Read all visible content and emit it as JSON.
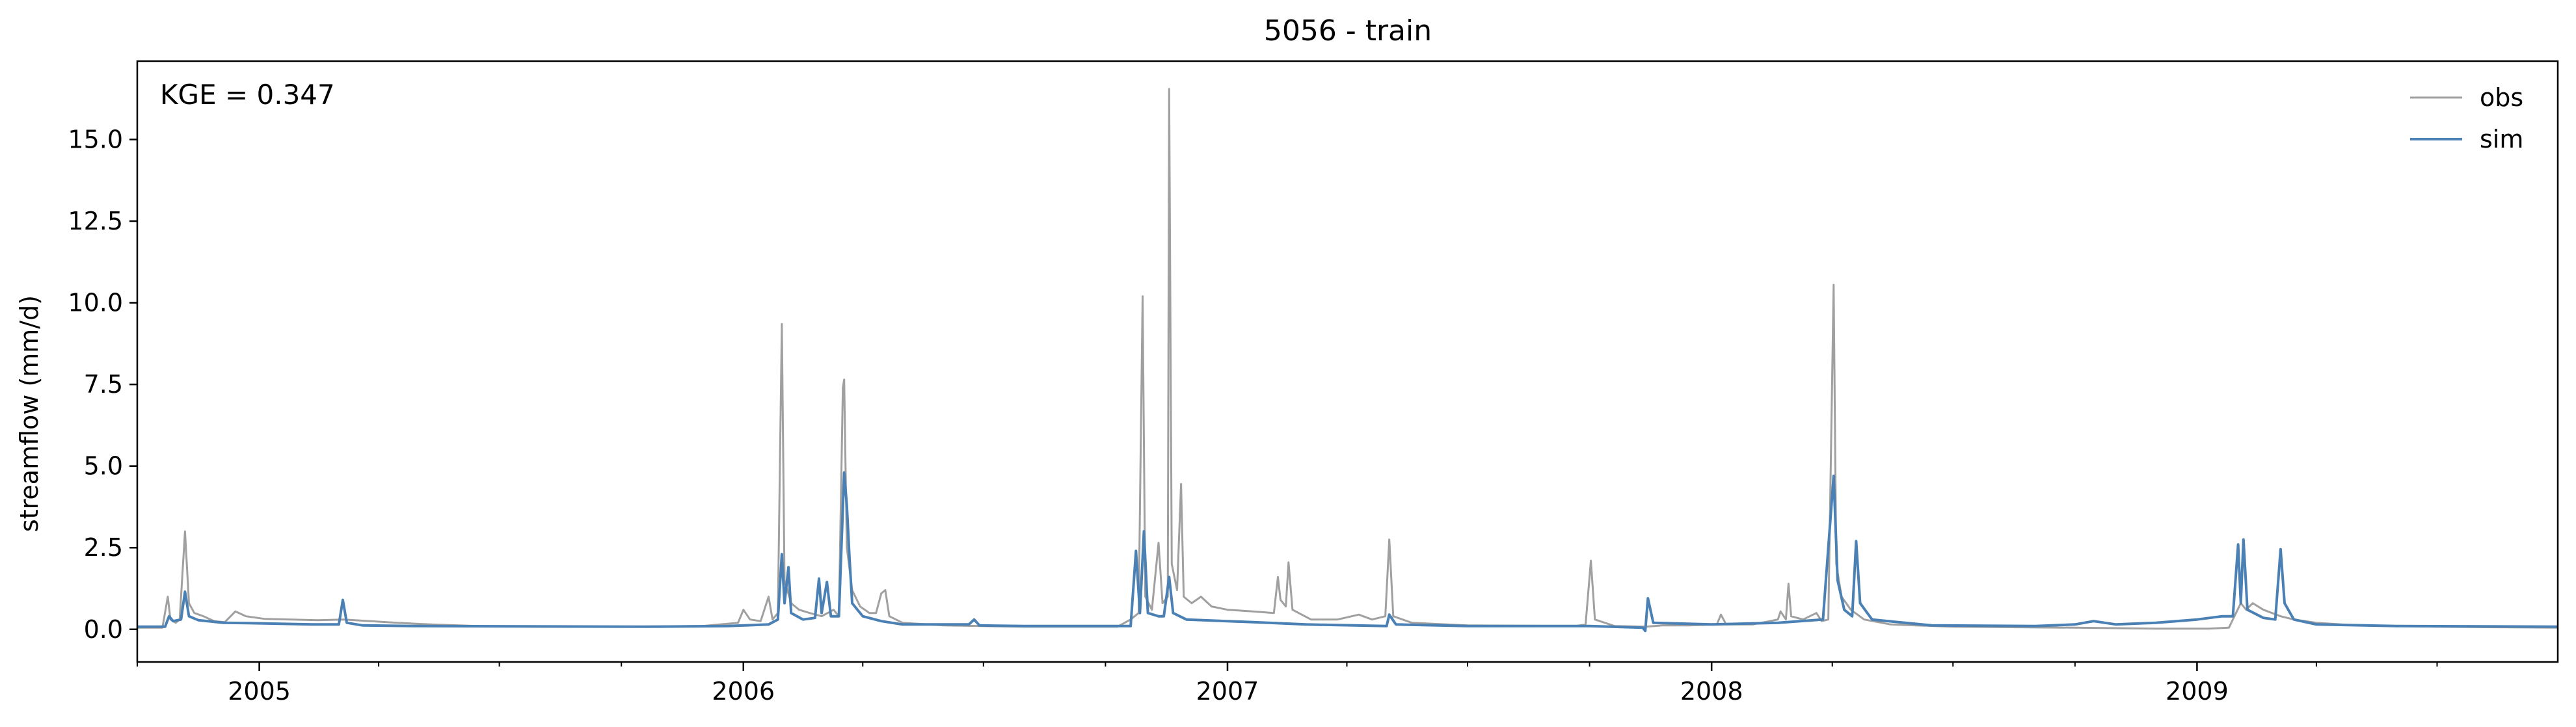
{
  "chart_data": {
    "type": "line",
    "title": "5056 - train",
    "xlabel": "",
    "ylabel": "streamflow (mm/d)",
    "annotation": "KGE = 0.347",
    "x_range": [
      "2004-10-01",
      "2009-09-30"
    ],
    "ylim": [
      -1.0,
      17.4
    ],
    "yticks": [
      0.0,
      2.5,
      5.0,
      7.5,
      10.0,
      12.5,
      15.0
    ],
    "ytick_labels": [
      "0.0",
      "2.5",
      "5.0",
      "7.5",
      "10.0",
      "12.5",
      "15.0"
    ],
    "xticks": [
      "2005-01-01",
      "2006-01-01",
      "2007-01-01",
      "2008-01-01",
      "2009-01-01"
    ],
    "xtick_labels": [
      "2005",
      "2006",
      "2007",
      "2008",
      "2009"
    ],
    "grid": false,
    "legend": "top-right",
    "series": [
      {
        "name": "obs",
        "color": "#a0a0a0",
        "points": [
          [
            "2004-10-01",
            0.05
          ],
          [
            "2004-10-20",
            0.05
          ],
          [
            "2004-10-24",
            1.0
          ],
          [
            "2004-10-26",
            0.3
          ],
          [
            "2004-10-30",
            0.2
          ],
          [
            "2004-11-02",
            0.3
          ],
          [
            "2004-11-06",
            3.0
          ],
          [
            "2004-11-09",
            0.8
          ],
          [
            "2004-11-13",
            0.5
          ],
          [
            "2004-11-20",
            0.4
          ],
          [
            "2004-11-28",
            0.25
          ],
          [
            "2004-12-06",
            0.22
          ],
          [
            "2004-12-14",
            0.55
          ],
          [
            "2004-12-22",
            0.4
          ],
          [
            "2005-01-05",
            0.32
          ],
          [
            "2005-01-25",
            0.3
          ],
          [
            "2005-02-14",
            0.28
          ],
          [
            "2005-03-06",
            0.3
          ],
          [
            "2005-03-26",
            0.25
          ],
          [
            "2005-04-15",
            0.2
          ],
          [
            "2005-05-10",
            0.15
          ],
          [
            "2005-06-15",
            0.1
          ],
          [
            "2005-08-01",
            0.08
          ],
          [
            "2005-10-01",
            0.08
          ],
          [
            "2005-12-01",
            0.1
          ],
          [
            "2005-12-28",
            0.2
          ],
          [
            "2006-01-01",
            0.6
          ],
          [
            "2006-01-06",
            0.3
          ],
          [
            "2006-01-14",
            0.25
          ],
          [
            "2006-01-20",
            1.0
          ],
          [
            "2006-01-23",
            0.3
          ],
          [
            "2006-01-27",
            0.5
          ],
          [
            "2006-01-30",
            9.35
          ],
          [
            "2006-02-01",
            1.5
          ],
          [
            "2006-02-06",
            0.8
          ],
          [
            "2006-02-12",
            0.6
          ],
          [
            "2006-02-20",
            0.5
          ],
          [
            "2006-03-01",
            0.4
          ],
          [
            "2006-03-10",
            0.6
          ],
          [
            "2006-03-14",
            0.4
          ],
          [
            "2006-03-17",
            7.4
          ],
          [
            "2006-03-18",
            7.65
          ],
          [
            "2006-03-20",
            2.5
          ],
          [
            "2006-03-24",
            1.2
          ],
          [
            "2006-03-30",
            0.7
          ],
          [
            "2006-04-06",
            0.5
          ],
          [
            "2006-04-11",
            0.5
          ],
          [
            "2006-04-15",
            1.1
          ],
          [
            "2006-04-18",
            1.2
          ],
          [
            "2006-04-21",
            0.4
          ],
          [
            "2006-05-01",
            0.2
          ],
          [
            "2006-06-01",
            0.12
          ],
          [
            "2006-08-01",
            0.08
          ],
          [
            "2006-10-10",
            0.08
          ],
          [
            "2006-10-20",
            0.3
          ],
          [
            "2006-10-26",
            0.5
          ],
          [
            "2006-10-29",
            10.2
          ],
          [
            "2006-10-31",
            1.0
          ],
          [
            "2006-11-05",
            0.6
          ],
          [
            "2006-11-10",
            2.65
          ],
          [
            "2006-11-13",
            0.8
          ],
          [
            "2006-11-17",
            1.0
          ],
          [
            "2006-11-18",
            16.55
          ],
          [
            "2006-11-20",
            2.0
          ],
          [
            "2006-11-24",
            1.2
          ],
          [
            "2006-11-27",
            4.45
          ],
          [
            "2006-11-29",
            1.0
          ],
          [
            "2006-12-05",
            0.8
          ],
          [
            "2006-12-12",
            1.0
          ],
          [
            "2006-12-20",
            0.7
          ],
          [
            "2007-01-01",
            0.6
          ],
          [
            "2007-01-20",
            0.55
          ],
          [
            "2007-02-05",
            0.5
          ],
          [
            "2007-02-08",
            1.6
          ],
          [
            "2007-02-10",
            0.9
          ],
          [
            "2007-02-14",
            0.7
          ],
          [
            "2007-02-16",
            2.05
          ],
          [
            "2007-02-19",
            0.6
          ],
          [
            "2007-03-05",
            0.3
          ],
          [
            "2007-03-25",
            0.3
          ],
          [
            "2007-04-10",
            0.45
          ],
          [
            "2007-04-20",
            0.3
          ],
          [
            "2007-04-30",
            0.4
          ],
          [
            "2007-05-03",
            2.75
          ],
          [
            "2007-05-06",
            0.4
          ],
          [
            "2007-05-20",
            0.2
          ],
          [
            "2007-07-01",
            0.12
          ],
          [
            "2007-09-20",
            0.1
          ],
          [
            "2007-09-28",
            0.15
          ],
          [
            "2007-10-02",
            2.1
          ],
          [
            "2007-10-05",
            0.3
          ],
          [
            "2007-10-20",
            0.1
          ],
          [
            "2007-11-12",
            0.08
          ],
          [
            "2007-11-25",
            0.12
          ],
          [
            "2007-12-15",
            0.12
          ],
          [
            "2008-01-05",
            0.15
          ],
          [
            "2008-01-08",
            0.45
          ],
          [
            "2008-01-12",
            0.15
          ],
          [
            "2008-02-01",
            0.15
          ],
          [
            "2008-02-20",
            0.3
          ],
          [
            "2008-02-22",
            0.55
          ],
          [
            "2008-02-26",
            0.3
          ],
          [
            "2008-02-28",
            1.4
          ],
          [
            "2008-03-01",
            0.4
          ],
          [
            "2008-03-10",
            0.3
          ],
          [
            "2008-03-20",
            0.5
          ],
          [
            "2008-03-24",
            0.25
          ],
          [
            "2008-03-29",
            0.3
          ],
          [
            "2008-04-02",
            10.55
          ],
          [
            "2008-04-04",
            2.0
          ],
          [
            "2008-04-08",
            1.0
          ],
          [
            "2008-04-15",
            0.6
          ],
          [
            "2008-04-25",
            0.3
          ],
          [
            "2008-05-15",
            0.15
          ],
          [
            "2008-07-01",
            0.08
          ],
          [
            "2008-10-01",
            0.05
          ],
          [
            "2008-12-01",
            0.02
          ],
          [
            "2009-01-10",
            0.02
          ],
          [
            "2009-01-25",
            0.05
          ],
          [
            "2009-02-03",
            0.8
          ],
          [
            "2009-02-07",
            0.6
          ],
          [
            "2009-02-12",
            0.8
          ],
          [
            "2009-02-20",
            0.6
          ],
          [
            "2009-03-05",
            0.4
          ],
          [
            "2009-03-15",
            0.3
          ],
          [
            "2009-04-01",
            0.2
          ],
          [
            "2009-05-01",
            0.12
          ],
          [
            "2009-07-01",
            0.08
          ],
          [
            "2009-09-30",
            0.05
          ]
        ]
      },
      {
        "name": "sim",
        "color": "#4a80b4",
        "points": [
          [
            "2004-10-01",
            0.08
          ],
          [
            "2004-10-22",
            0.08
          ],
          [
            "2004-10-25",
            0.4
          ],
          [
            "2004-10-28",
            0.25
          ],
          [
            "2004-11-03",
            0.3
          ],
          [
            "2004-11-06",
            1.15
          ],
          [
            "2004-11-09",
            0.4
          ],
          [
            "2004-11-16",
            0.28
          ],
          [
            "2004-12-05",
            0.2
          ],
          [
            "2005-01-05",
            0.18
          ],
          [
            "2005-02-10",
            0.15
          ],
          [
            "2005-03-02",
            0.15
          ],
          [
            "2005-03-05",
            0.9
          ],
          [
            "2005-03-08",
            0.2
          ],
          [
            "2005-03-20",
            0.12
          ],
          [
            "2005-05-01",
            0.1
          ],
          [
            "2005-10-20",
            0.08
          ],
          [
            "2005-12-20",
            0.1
          ],
          [
            "2006-01-20",
            0.15
          ],
          [
            "2006-01-27",
            0.3
          ],
          [
            "2006-01-30",
            2.3
          ],
          [
            "2006-02-01",
            0.8
          ],
          [
            "2006-02-04",
            1.9
          ],
          [
            "2006-02-06",
            0.5
          ],
          [
            "2006-02-15",
            0.3
          ],
          [
            "2006-02-24",
            0.35
          ],
          [
            "2006-02-27",
            1.55
          ],
          [
            "2006-03-01",
            0.5
          ],
          [
            "2006-03-05",
            1.45
          ],
          [
            "2006-03-08",
            0.4
          ],
          [
            "2006-03-14",
            0.4
          ],
          [
            "2006-03-18",
            4.8
          ],
          [
            "2006-03-20",
            3.8
          ],
          [
            "2006-03-22",
            2.2
          ],
          [
            "2006-03-24",
            0.8
          ],
          [
            "2006-04-01",
            0.4
          ],
          [
            "2006-04-15",
            0.25
          ],
          [
            "2006-05-01",
            0.15
          ],
          [
            "2006-06-20",
            0.15
          ],
          [
            "2006-06-24",
            0.3
          ],
          [
            "2006-06-28",
            0.12
          ],
          [
            "2006-08-01",
            0.1
          ],
          [
            "2006-10-20",
            0.1
          ],
          [
            "2006-10-24",
            2.4
          ],
          [
            "2006-10-27",
            0.5
          ],
          [
            "2006-10-30",
            3.0
          ],
          [
            "2006-11-02",
            0.5
          ],
          [
            "2006-11-10",
            0.4
          ],
          [
            "2006-11-14",
            0.4
          ],
          [
            "2006-11-18",
            1.6
          ],
          [
            "2006-11-21",
            0.5
          ],
          [
            "2006-12-01",
            0.3
          ],
          [
            "2007-01-01",
            0.25
          ],
          [
            "2007-02-01",
            0.2
          ],
          [
            "2007-03-01",
            0.15
          ],
          [
            "2007-05-01",
            0.1
          ],
          [
            "2007-05-03",
            0.45
          ],
          [
            "2007-05-08",
            0.15
          ],
          [
            "2007-07-01",
            0.1
          ],
          [
            "2007-10-01",
            0.1
          ],
          [
            "2007-11-10",
            0.05
          ],
          [
            "2007-11-12",
            -0.05
          ],
          [
            "2007-11-14",
            0.95
          ],
          [
            "2007-11-18",
            0.2
          ],
          [
            "2008-01-01",
            0.15
          ],
          [
            "2008-02-20",
            0.2
          ],
          [
            "2008-03-25",
            0.3
          ],
          [
            "2008-04-02",
            4.7
          ],
          [
            "2008-04-05",
            1.5
          ],
          [
            "2008-04-10",
            0.6
          ],
          [
            "2008-04-16",
            0.4
          ],
          [
            "2008-04-19",
            2.7
          ],
          [
            "2008-04-22",
            0.8
          ],
          [
            "2008-05-01",
            0.3
          ],
          [
            "2008-06-15",
            0.12
          ],
          [
            "2008-09-01",
            0.1
          ],
          [
            "2008-10-01",
            0.15
          ],
          [
            "2008-10-15",
            0.25
          ],
          [
            "2008-11-01",
            0.15
          ],
          [
            "2008-12-01",
            0.2
          ],
          [
            "2009-01-01",
            0.3
          ],
          [
            "2009-01-20",
            0.4
          ],
          [
            "2009-01-28",
            0.4
          ],
          [
            "2009-02-01",
            2.6
          ],
          [
            "2009-02-03",
            0.8
          ],
          [
            "2009-02-05",
            2.75
          ],
          [
            "2009-02-08",
            0.6
          ],
          [
            "2009-02-20",
            0.35
          ],
          [
            "2009-03-01",
            0.3
          ],
          [
            "2009-03-05",
            2.45
          ],
          [
            "2009-03-08",
            0.8
          ],
          [
            "2009-03-15",
            0.3
          ],
          [
            "2009-04-01",
            0.15
          ],
          [
            "2009-06-01",
            0.1
          ],
          [
            "2009-09-30",
            0.08
          ]
        ]
      }
    ]
  }
}
